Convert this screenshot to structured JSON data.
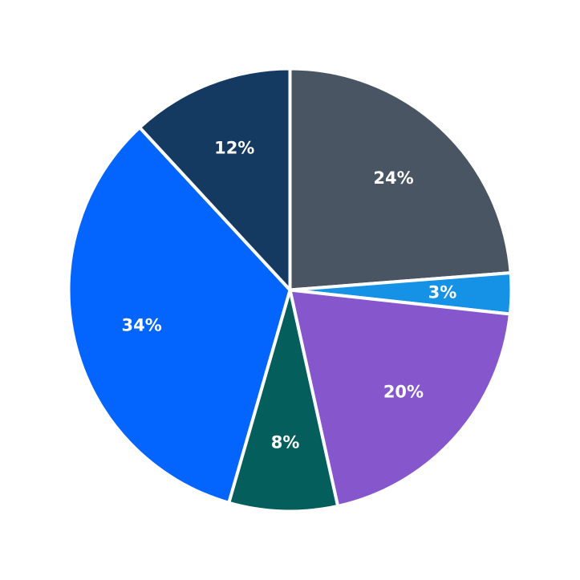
{
  "chart_data": {
    "type": "pie",
    "start_angle": "12 o'clock",
    "direction": "clockwise",
    "slices": [
      {
        "value": 24,
        "label": "24%",
        "color": "#4a5563"
      },
      {
        "value": 3,
        "label": "3%",
        "color": "#1591e6"
      },
      {
        "value": 20,
        "label": "20%",
        "color": "#8656cc"
      },
      {
        "value": 8,
        "label": "8%",
        "color": "#035e5c"
      },
      {
        "value": 34,
        "label": "34%",
        "color": "#0465fe"
      },
      {
        "value": 12,
        "label": "12%",
        "color": "#143a62"
      }
    ]
  }
}
